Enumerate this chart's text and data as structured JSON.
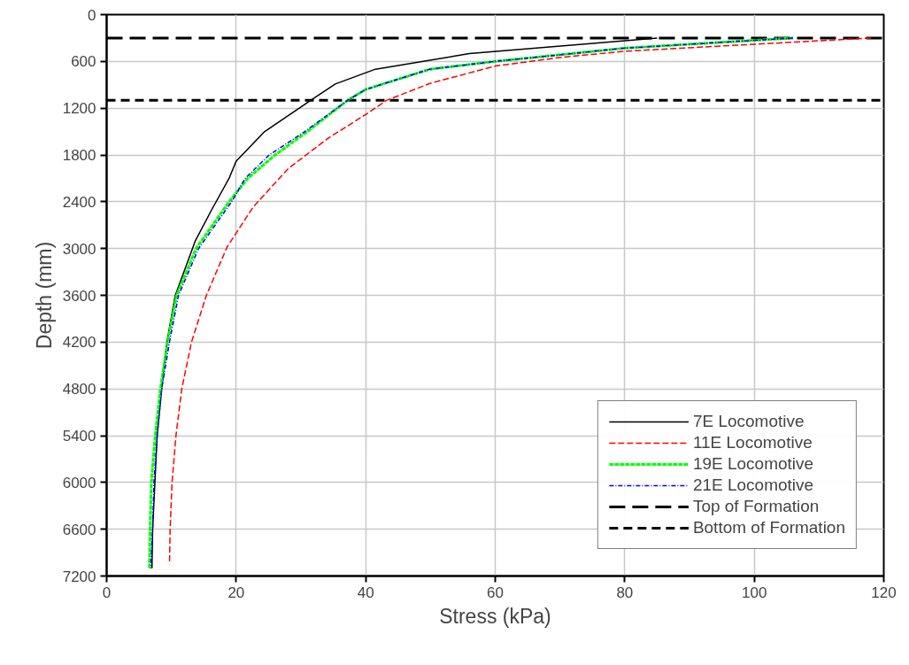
{
  "chart_data": {
    "type": "line",
    "xlabel": "Stress (kPa)",
    "ylabel": "Depth (mm)",
    "xlim": [
      0,
      120
    ],
    "xticks": [
      0,
      20,
      40,
      60,
      80,
      100,
      120
    ],
    "ylim": [
      7200,
      0
    ],
    "yticks": [
      0,
      600,
      1200,
      1800,
      2400,
      3000,
      3600,
      4200,
      4800,
      5400,
      6000,
      6600,
      7200
    ],
    "grid": true,
    "legend": "bottom right",
    "marker": "none",
    "series": [
      {
        "name": "7E Locomotive",
        "color": "#000000",
        "line_style": "solid",
        "x": [
          85,
          56,
          41.5,
          35.3,
          31.7,
          24.4,
          20,
          18.9,
          16.3,
          13.7,
          10.6,
          9.3,
          8.5,
          7.8,
          7.45,
          7.1,
          7.0
        ],
        "values": [
          300,
          500,
          700,
          890,
          1090,
          1500,
          1880,
          2100,
          2490,
          2900,
          3600,
          4200,
          4800,
          5400,
          6000,
          6600,
          7100
        ]
      },
      {
        "name": "11E Locomotive",
        "color": "#ff0000",
        "line_style": "dashed",
        "x": [
          118,
          100,
          80,
          70,
          60,
          50,
          43.2,
          40.4,
          34.3,
          28.1,
          22.6,
          18.6,
          15.4,
          13.1,
          11.6,
          10.7,
          10.1,
          9.8,
          9.7
        ],
        "values": [
          300,
          380,
          470,
          550,
          660,
          880,
          1100,
          1260,
          1580,
          1970,
          2470,
          2980,
          3600,
          4200,
          4800,
          5400,
          6000,
          6600,
          7050
        ]
      },
      {
        "name": "19E Locomotive",
        "color": "#00ff00",
        "line_style": "dashed",
        "x": [
          106,
          80,
          60,
          49.9,
          40,
          37.2,
          31,
          26,
          21.8,
          18.9,
          13.8,
          10.8,
          9.4,
          8.3,
          7.5,
          6.9,
          6.7,
          6.6
        ],
        "values": [
          300,
          430,
          600,
          700,
          960,
          1100,
          1500,
          1800,
          2100,
          2400,
          3000,
          3600,
          4200,
          4800,
          5400,
          6000,
          6600,
          7100
        ]
      },
      {
        "name": "21E Locomotive",
        "color": "#0000ff",
        "line_style": "dashed",
        "x": [
          106,
          80,
          60,
          49.9,
          40,
          37.2,
          30.6,
          25.1,
          21.4,
          19.3,
          14.2,
          11.1,
          9.7,
          8.5,
          7.8,
          7.3,
          7.1,
          6.8
        ],
        "values": [
          300,
          430,
          600,
          700,
          960,
          1100,
          1500,
          1800,
          2100,
          2400,
          3000,
          3600,
          4200,
          4800,
          5400,
          6000,
          6600,
          7100
        ]
      }
    ],
    "ref_lines": [
      {
        "axis": "y",
        "value": 300,
        "label": "Top of Formation",
        "color": "#000000",
        "line_style": "dashed"
      },
      {
        "axis": "y",
        "value": 1100,
        "label": "Bottom of Formation",
        "color": "#000000",
        "line_style": "dashed"
      }
    ]
  }
}
